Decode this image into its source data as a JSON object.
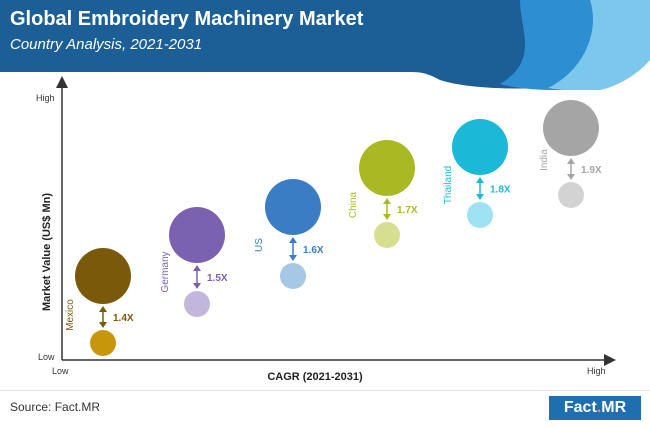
{
  "header": {
    "title": "Global Embroidery Machinery Market",
    "subtitle": "Country Analysis, 2021-2031",
    "colors": {
      "dark": "#1b5f96",
      "mid": "#2d8fd1",
      "light": "#7cc8ec"
    }
  },
  "chart_data": {
    "type": "bubble",
    "xlabel": "CAGR (2021-2031)",
    "ylabel": "Market Value (US$ Mn)",
    "x_axis_ends": {
      "low": "Low",
      "high": "High"
    },
    "y_axis_ends": {
      "low": "Low",
      "high": "High"
    },
    "grid": false,
    "legend": "none",
    "series": [
      {
        "name": "Mexico",
        "multiplier": "1.4X",
        "color_big": "#7a5a0a",
        "color_small": "#c8960a"
      },
      {
        "name": "Germany",
        "multiplier": "1.5X",
        "color_big": "#7b62b0",
        "color_small": "#c3b6dc"
      },
      {
        "name": "US",
        "multiplier": "1.6X",
        "color_big": "#3a7dc4",
        "color_small": "#a6c7e6"
      },
      {
        "name": "China",
        "multiplier": "1.7X",
        "color_big": "#a8b923",
        "color_small": "#d6df8f"
      },
      {
        "name": "Thailand",
        "multiplier": "1.8X",
        "color_big": "#1cb8d8",
        "color_small": "#9fe3f2"
      },
      {
        "name": "India",
        "multiplier": "1.9X",
        "color_big": "#a5a5a5",
        "color_small": "#d3d3d3"
      }
    ]
  },
  "footer": {
    "source": "Source: Fact.MR",
    "logo_left": "Fact",
    "logo_dot": ".",
    "logo_right": "MR"
  }
}
